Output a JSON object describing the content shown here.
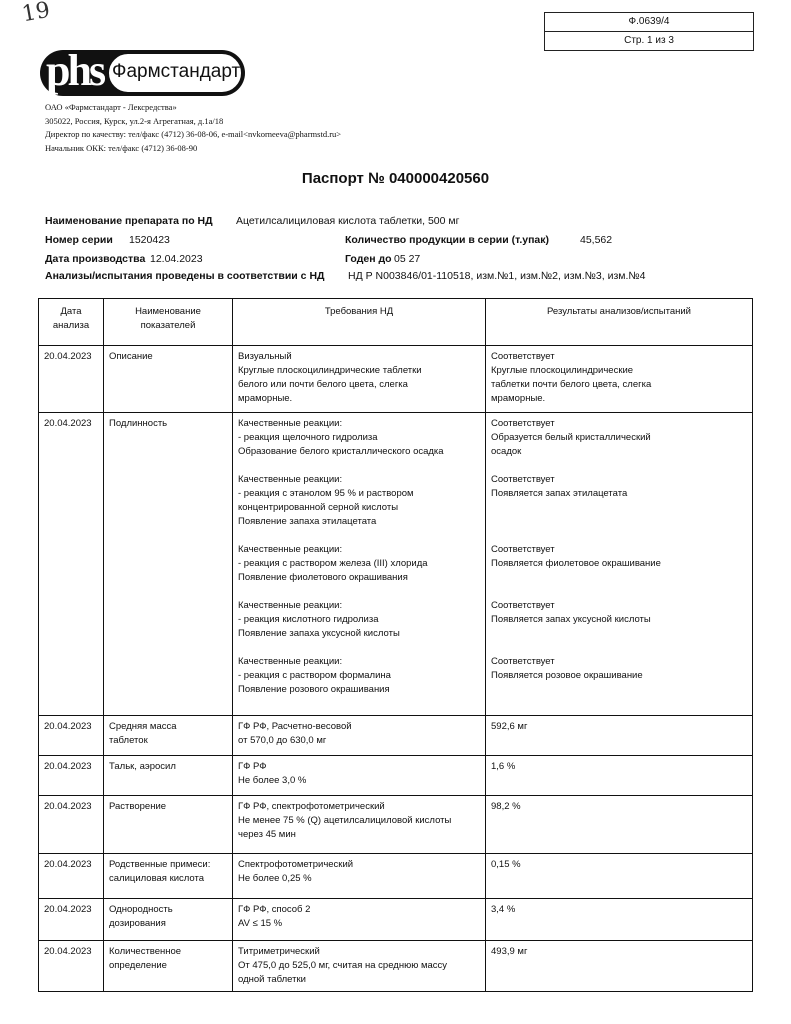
{
  "handwritten_note": "19",
  "form_box": {
    "code": "Ф.0639/4",
    "page": "Стр. 1 из 3"
  },
  "logo": {
    "mark": "phs",
    "name": "Фармстандарт"
  },
  "company": {
    "lines": [
      "ОАО «Фармстандарт - Лексредства»",
      "305022, Россия, Курск, ул.2-я Агрегатная, д.1а/18",
      "Директор по качеству: тел/факс (4712) 36-08-06, e-mail<nvkorneeva@pharmstd.ru>",
      "Начальник ОКК: тел/факс (4712) 36-08-90"
    ]
  },
  "title": "Паспорт № 040000420560",
  "info": {
    "drug_label": "Наименование препарата по НД",
    "drug_value": "Ацетилсалициловая кислота таблетки, 500 мг",
    "series_label": "Номер серии",
    "series_value": "1520423",
    "qty_label": "Количество продукции в серии (т.упак)",
    "qty_value": "45,562",
    "prod_date_label": "Дата производства",
    "prod_date_value": "12.04.2023",
    "expiry_label": "Годен до",
    "expiry_value": "05 27",
    "nd_label": "Анализы/испытания проведены в соответствии с НД",
    "nd_value": "НД Р N003846/01-110518, изм.№1, изм.№2, изм.№3, изм.№4"
  },
  "table": {
    "headers": [
      [
        "Дата",
        "анализа"
      ],
      [
        "Наименование",
        "показателей"
      ],
      [
        "Требования НД"
      ],
      [
        "Результаты анализов/испытаний"
      ]
    ],
    "rows": [
      {
        "date": "20.04.2023",
        "indicator": [
          "Описание"
        ],
        "blocks": [
          {
            "req": [
              "Визуальный",
              "Круглые плоскоцилиндрические таблетки",
              "белого или почти белого цвета, слегка",
              "мраморные."
            ],
            "res": [
              "Соответствует",
              "Круглые плоскоцилиндрические",
              "таблетки почти белого цвета, слегка",
              "мраморные."
            ]
          }
        ]
      },
      {
        "date": "20.04.2023",
        "indicator": [
          "Подлинность"
        ],
        "blocks": [
          {
            "req": [
              "Качественные реакции:",
              "- реакция щелочного гидролиза",
              "Образование белого кристаллического осадка"
            ],
            "res": [
              "Соответствует",
              "Образуется белый кристаллический",
              "осадок"
            ]
          },
          {
            "req": [
              "Качественные реакции:",
              "- реакция с этанолом 95 % и раствором",
              "концентрированной серной кислоты",
              "Появление запаха этилацетата"
            ],
            "res": [
              "Соответствует",
              "Появляется запах этилацетата"
            ]
          },
          {
            "req": [
              "Качественные реакции:",
              "- реакция с раствором железа (III) хлорида",
              "Появление фиолетового окрашивания"
            ],
            "res": [
              "Соответствует",
              "Появляется фиолетовое окрашивание"
            ]
          },
          {
            "req": [
              "Качественные реакции:",
              "- реакция кислотного гидролиза",
              "Появление запаха уксусной кислоты"
            ],
            "res": [
              "Соответствует",
              "Появляется запах уксусной кислоты"
            ]
          },
          {
            "req": [
              "Качественные реакции:",
              "- реакция с раствором формалина",
              "Появление розового окрашивания"
            ],
            "res": [
              "Соответствует",
              "Появляется розовое окрашивание"
            ]
          }
        ]
      },
      {
        "date": "20.04.2023",
        "indicator": [
          "Средняя масса",
          "таблеток"
        ],
        "blocks": [
          {
            "req": [
              "ГФ РФ, Расчетно-весовой",
              "от 570,0 до 630,0 мг"
            ],
            "res": [
              "592,6 мг"
            ]
          }
        ]
      },
      {
        "date": "20.04.2023",
        "indicator": [
          "Тальк, аэросил"
        ],
        "blocks": [
          {
            "req": [
              "ГФ РФ",
              "Не более 3,0 %"
            ],
            "res": [
              "1,6 %"
            ]
          }
        ]
      },
      {
        "date": "20.04.2023",
        "indicator": [
          "Растворение"
        ],
        "blocks": [
          {
            "req": [
              "ГФ РФ, спектрофотометрический",
              "Не менее 75 % (Q) ацетилсалициловой кислоты",
              "через 45 мин"
            ],
            "res": [
              "98,2 %"
            ]
          }
        ]
      },
      {
        "date": "20.04.2023",
        "indicator": [
          "Родственные примеси:",
          "салициловая кислота"
        ],
        "blocks": [
          {
            "req": [
              "Спектрофотометрический",
              "Не более 0,25 %"
            ],
            "res": [
              "0,15 %"
            ]
          }
        ]
      },
      {
        "date": "20.04.2023",
        "indicator": [
          "Однородность",
          "дозирования"
        ],
        "blocks": [
          {
            "req": [
              "ГФ РФ, способ 2",
              "AV ≤ 15 %"
            ],
            "res": [
              "3,4 %"
            ]
          }
        ]
      },
      {
        "date": "20.04.2023",
        "indicator": [
          "Количественное",
          "определение"
        ],
        "blocks": [
          {
            "req": [
              "Титриметрический",
              "От 475,0 до 525,0 мг, считая на среднюю массу",
              "одной таблетки"
            ],
            "res": [
              "493,9 мг"
            ]
          }
        ]
      }
    ]
  }
}
